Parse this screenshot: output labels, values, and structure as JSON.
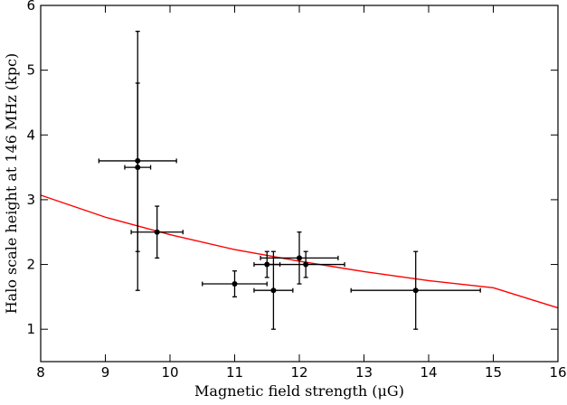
{
  "chart_data": {
    "type": "scatter",
    "xlabel": "Magnetic field strength (μG)",
    "ylabel": "Halo scale height at 146 MHz (kpc)",
    "xlim": [
      8,
      16
    ],
    "ylim": [
      0.5,
      6
    ],
    "xticks": [
      8,
      9,
      10,
      11,
      12,
      13,
      14,
      15,
      16
    ],
    "yticks": [
      1,
      2,
      3,
      4,
      5,
      6
    ],
    "grid": false,
    "points": [
      {
        "x": 9.5,
        "y": 3.6,
        "xerr": 0.6,
        "yerr": 2.0
      },
      {
        "x": 9.5,
        "y": 3.5,
        "xerr": 0.2,
        "yerr": 1.3
      },
      {
        "x": 9.8,
        "y": 2.5,
        "xerr": 0.4,
        "yerr": 0.4
      },
      {
        "x": 11.0,
        "y": 1.7,
        "xerr": 0.5,
        "yerr": 0.2
      },
      {
        "x": 11.5,
        "y": 2.0,
        "xerr": 0.2,
        "yerr": 0.2
      },
      {
        "x": 11.6,
        "y": 1.6,
        "xerr": 0.3,
        "yerr": 0.6
      },
      {
        "x": 12.0,
        "y": 2.1,
        "xerr": 0.6,
        "yerr": 0.4
      },
      {
        "x": 12.1,
        "y": 2.0,
        "xerr": 0.6,
        "yerr": 0.2
      },
      {
        "x": 13.8,
        "y": 1.6,
        "xerr": 1.0,
        "yerr": 0.6
      }
    ],
    "fit_curve": {
      "color": "#ff0000",
      "x": [
        8,
        9,
        10,
        11,
        12,
        13,
        14,
        15,
        16
      ],
      "y": [
        3.07,
        2.73,
        2.46,
        2.23,
        2.05,
        1.89,
        1.75,
        1.64,
        1.33
      ]
    },
    "marker_color": "#000000"
  }
}
